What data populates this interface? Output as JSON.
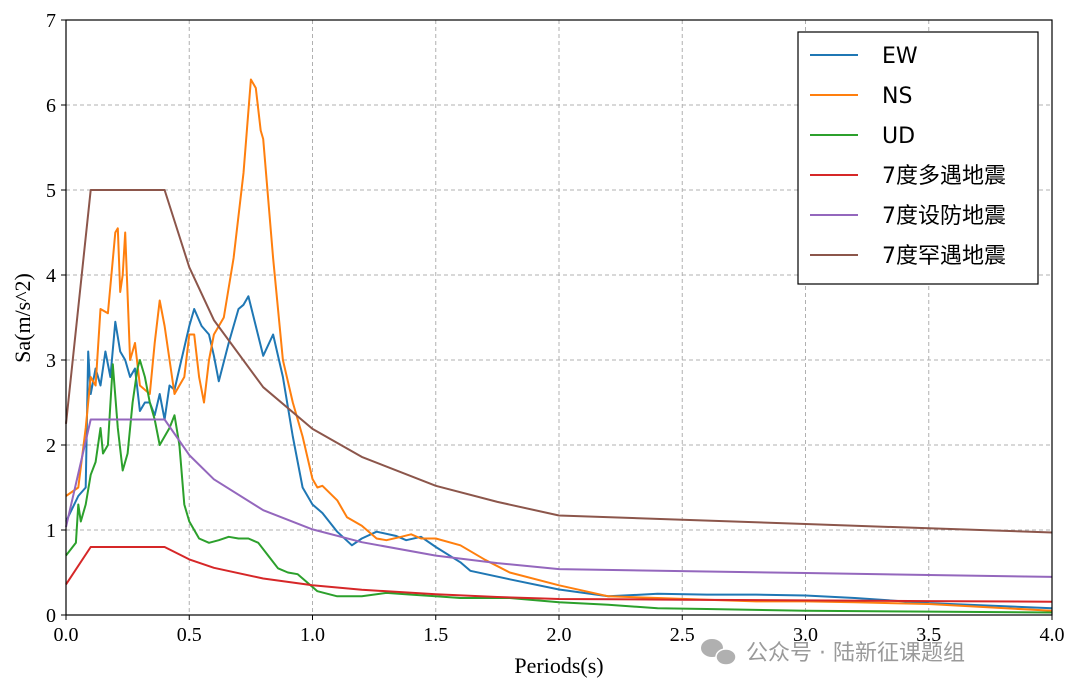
{
  "chart_data": {
    "type": "line",
    "title": "",
    "xlabel": "Periods(s)",
    "ylabel": "Sa(m/s^2)",
    "xlim": [
      0,
      4.0
    ],
    "ylim": [
      0,
      7
    ],
    "xticks": [
      "0.0",
      "0.5",
      "1.0",
      "1.5",
      "2.0",
      "2.5",
      "3.0",
      "3.5",
      "4.0"
    ],
    "yticks": [
      "0",
      "1",
      "2",
      "3",
      "4",
      "5",
      "6",
      "7"
    ],
    "grid": true,
    "legend_position": "top-right",
    "series": [
      {
        "name": "EW",
        "color": "#1f77b4",
        "x": [
          0,
          0.05,
          0.08,
          0.09,
          0.1,
          0.12,
          0.14,
          0.16,
          0.18,
          0.2,
          0.22,
          0.24,
          0.26,
          0.28,
          0.3,
          0.32,
          0.34,
          0.36,
          0.38,
          0.4,
          0.42,
          0.44,
          0.46,
          0.5,
          0.52,
          0.55,
          0.58,
          0.6,
          0.62,
          0.66,
          0.7,
          0.72,
          0.74,
          0.77,
          0.8,
          0.84,
          0.88,
          0.92,
          0.96,
          1.0,
          1.04,
          1.1,
          1.16,
          1.2,
          1.26,
          1.34,
          1.38,
          1.44,
          1.5,
          1.6,
          1.64,
          1.8,
          2.0,
          2.2,
          2.4,
          2.6,
          2.8,
          3.0,
          3.2,
          3.5,
          4.0
        ],
        "y": [
          1.1,
          1.4,
          1.5,
          3.1,
          2.6,
          2.9,
          2.7,
          3.1,
          2.8,
          3.45,
          3.1,
          3.0,
          2.8,
          2.9,
          2.4,
          2.5,
          2.5,
          2.35,
          2.6,
          2.3,
          2.7,
          2.65,
          2.9,
          3.4,
          3.6,
          3.4,
          3.3,
          3.05,
          2.75,
          3.2,
          3.6,
          3.65,
          3.75,
          3.4,
          3.05,
          3.3,
          2.8,
          2.1,
          1.5,
          1.3,
          1.2,
          0.98,
          0.82,
          0.9,
          0.98,
          0.93,
          0.88,
          0.92,
          0.8,
          0.62,
          0.52,
          0.42,
          0.3,
          0.22,
          0.25,
          0.24,
          0.24,
          0.23,
          0.2,
          0.14,
          0.08
        ]
      },
      {
        "name": "NS",
        "color": "#ff7f0e",
        "x": [
          0,
          0.05,
          0.08,
          0.1,
          0.12,
          0.14,
          0.17,
          0.2,
          0.21,
          0.22,
          0.23,
          0.24,
          0.26,
          0.28,
          0.3,
          0.34,
          0.36,
          0.38,
          0.4,
          0.44,
          0.48,
          0.5,
          0.52,
          0.54,
          0.56,
          0.58,
          0.6,
          0.64,
          0.68,
          0.72,
          0.75,
          0.77,
          0.79,
          0.8,
          0.84,
          0.88,
          0.92,
          0.96,
          1.0,
          1.02,
          1.04,
          1.1,
          1.14,
          1.2,
          1.26,
          1.3,
          1.36,
          1.4,
          1.44,
          1.5,
          1.6,
          1.7,
          1.8,
          2.0,
          2.2,
          2.4,
          2.6,
          2.8,
          3.0,
          3.2,
          3.5,
          4.0
        ],
        "y": [
          1.4,
          1.5,
          2.2,
          2.8,
          2.7,
          3.6,
          3.55,
          4.5,
          4.55,
          3.8,
          4.0,
          4.5,
          3.0,
          3.2,
          2.7,
          2.6,
          3.2,
          3.7,
          3.4,
          2.6,
          2.8,
          3.3,
          3.3,
          2.8,
          2.5,
          3.0,
          3.3,
          3.5,
          4.2,
          5.2,
          6.3,
          6.2,
          5.7,
          5.6,
          4.2,
          3.0,
          2.5,
          2.1,
          1.6,
          1.5,
          1.52,
          1.35,
          1.15,
          1.05,
          0.9,
          0.88,
          0.92,
          0.95,
          0.9,
          0.9,
          0.82,
          0.65,
          0.5,
          0.35,
          0.22,
          0.2,
          0.18,
          0.16,
          0.16,
          0.15,
          0.13,
          0.05
        ]
      },
      {
        "name": "UD",
        "color": "#2ca02c",
        "x": [
          0,
          0.04,
          0.05,
          0.06,
          0.08,
          0.1,
          0.12,
          0.14,
          0.15,
          0.17,
          0.19,
          0.21,
          0.23,
          0.25,
          0.27,
          0.29,
          0.3,
          0.32,
          0.34,
          0.36,
          0.38,
          0.4,
          0.42,
          0.44,
          0.46,
          0.48,
          0.5,
          0.54,
          0.58,
          0.62,
          0.66,
          0.7,
          0.74,
          0.78,
          0.82,
          0.86,
          0.9,
          0.94,
          0.98,
          1.02,
          1.1,
          1.2,
          1.3,
          1.4,
          1.5,
          1.6,
          1.8,
          2.0,
          2.2,
          2.4,
          2.6,
          3.0,
          3.5,
          4.0
        ],
        "y": [
          0.7,
          0.85,
          1.3,
          1.1,
          1.3,
          1.65,
          1.8,
          2.2,
          1.9,
          2.0,
          2.95,
          2.2,
          1.7,
          1.9,
          2.5,
          2.9,
          3.0,
          2.8,
          2.5,
          2.3,
          2.0,
          2.1,
          2.2,
          2.35,
          2.0,
          1.3,
          1.1,
          0.9,
          0.85,
          0.88,
          0.92,
          0.9,
          0.9,
          0.85,
          0.7,
          0.55,
          0.5,
          0.48,
          0.38,
          0.28,
          0.22,
          0.22,
          0.26,
          0.24,
          0.22,
          0.2,
          0.2,
          0.15,
          0.12,
          0.08,
          0.07,
          0.05,
          0.04,
          0.03
        ]
      },
      {
        "name": "7度多遇地震",
        "color": "#d62728",
        "x": [
          0,
          0.1,
          0.4,
          0.5,
          0.6,
          0.8,
          1.0,
          1.2,
          1.5,
          1.75,
          2.0,
          2.5,
          3.0,
          3.5,
          4.0
        ],
        "y": [
          0.36,
          0.8,
          0.8,
          0.654,
          0.555,
          0.429,
          0.35,
          0.298,
          0.243,
          0.212,
          0.188,
          0.18,
          0.172,
          0.164,
          0.156
        ]
      },
      {
        "name": "7度设防地震",
        "color": "#9467bd",
        "x": [
          0,
          0.1,
          0.4,
          0.5,
          0.6,
          0.8,
          1.0,
          1.2,
          1.5,
          1.75,
          2.0,
          2.5,
          3.0,
          3.5,
          4.0
        ],
        "y": [
          1.035,
          2.3,
          2.3,
          1.881,
          1.596,
          1.233,
          1.007,
          0.856,
          0.699,
          0.61,
          0.54,
          0.517,
          0.494,
          0.471,
          0.448
        ]
      },
      {
        "name": "7度罕遇地震",
        "color": "#8c564b",
        "x": [
          0,
          0.1,
          0.4,
          0.5,
          0.6,
          0.8,
          1.0,
          1.2,
          1.5,
          1.75,
          2.0,
          2.5,
          3.0,
          3.5,
          4.0
        ],
        "y": [
          2.25,
          5.0,
          5.0,
          4.09,
          3.47,
          2.68,
          2.19,
          1.86,
          1.52,
          1.33,
          1.17,
          1.12,
          1.07,
          1.02,
          0.97
        ]
      }
    ]
  },
  "watermark": {
    "text": "公众号 · 陆新征课题组",
    "icon": "wechat-icon"
  }
}
